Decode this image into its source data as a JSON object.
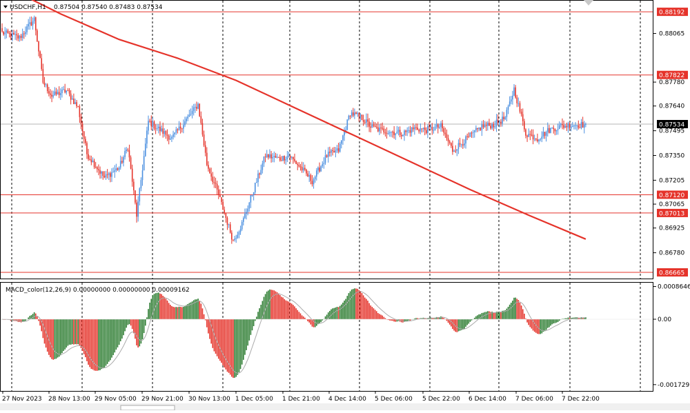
{
  "chart_data": [
    {
      "type": "candlestick",
      "symbol": "USDCHF",
      "timeframe": "H1",
      "header": {
        "symbol_label": "USDCHF,H1",
        "ohlc_text": "0.87504 0.87540 0.87483 0.87534"
      },
      "ylim": [
        0.86645,
        0.88245
      ],
      "y_ticks": [
        "0.88065",
        "0.87780",
        "0.87640",
        "0.87495",
        "0.87350",
        "0.87205",
        "0.87065",
        "0.86925",
        "0.86780"
      ],
      "x_ticks": [
        "27 Nov 2023",
        "28 Nov 13:00",
        "29 Nov 05:00",
        "29 Nov 21:00",
        "30 Nov 13:00",
        "1 Dec 05:00",
        "1 Dec 21:00",
        "4 Dec 14:00",
        "5 Dec 06:00",
        "5 Dec 22:00",
        "6 Dec 14:00",
        "7 Dec 06:00",
        "7 Dec 22:00"
      ],
      "current_price": "0.87534",
      "bull_color": "#4a8fe0",
      "bear_color": "#e5332a",
      "ma_color": "#e5332a",
      "grid": "vertical dotted",
      "horizontal_levels": [
        "0.88192",
        "0.87822",
        "0.87120",
        "0.87013",
        "0.86665"
      ],
      "moving_average": {
        "x_index": [
          0,
          40,
          80,
          120,
          160,
          200,
          240,
          280,
          320,
          360,
          399
        ],
        "values": [
          0.8835,
          0.8818,
          0.8803,
          0.8792,
          0.8779,
          0.8763,
          0.8747,
          0.8731,
          0.8715,
          0.87,
          0.8686
        ]
      },
      "path_anchors": {
        "x_index": [
          0,
          12,
          22,
          28,
          34,
          44,
          52,
          58,
          70,
          80,
          86,
          92,
          100,
          108,
          116,
          126,
          134,
          140,
          148,
          158,
          164,
          170,
          180,
          190,
          196,
          204,
          212,
          222,
          230,
          238,
          246,
          252,
          258,
          266,
          274,
          282,
          290,
          300,
          308,
          318,
          328,
          336,
          344,
          350,
          358,
          366,
          374,
          381,
          390,
          398
        ],
        "close": [
          0.8807,
          0.8804,
          0.8815,
          0.8778,
          0.877,
          0.8773,
          0.8763,
          0.8736,
          0.8722,
          0.8728,
          0.874,
          0.87,
          0.8755,
          0.875,
          0.8745,
          0.8756,
          0.8765,
          0.873,
          0.8712,
          0.8685,
          0.8695,
          0.871,
          0.8735,
          0.8733,
          0.8735,
          0.8728,
          0.872,
          0.8735,
          0.8738,
          0.876,
          0.8757,
          0.8752,
          0.875,
          0.8749,
          0.8748,
          0.8751,
          0.875,
          0.8752,
          0.8738,
          0.8745,
          0.8752,
          0.8753,
          0.8757,
          0.8774,
          0.8748,
          0.8745,
          0.875,
          0.8752,
          0.8753,
          0.8753
        ]
      }
    },
    {
      "type": "histogram",
      "label": "MACD_color(12,26,9) 0.00000000 0.00000000 0.00009162",
      "ylim": [
        -0.00186,
        0.00093
      ],
      "y_ticks": [
        "0.0008646",
        "0.00",
        "-0.0017297"
      ],
      "positive_color": "#2e7d32",
      "negative_color": "#e5332a",
      "signal_color": "#aaaaaa"
    }
  ]
}
